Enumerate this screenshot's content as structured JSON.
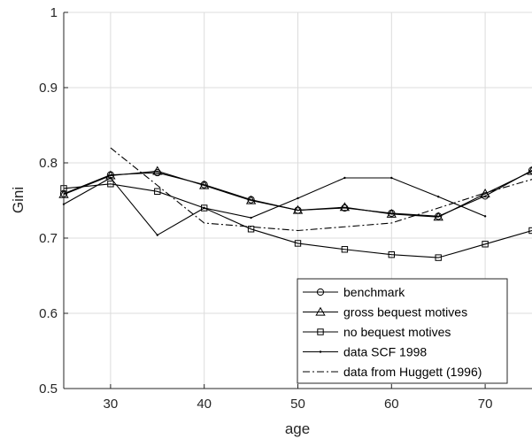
{
  "chart_data": {
    "type": "line",
    "xlabel": "age",
    "ylabel": "Gini",
    "xlim": [
      25,
      75
    ],
    "ylim": [
      0.5,
      1.0
    ],
    "x_ticks": [
      "30",
      "40",
      "50",
      "60",
      "70"
    ],
    "x_tick_values": [
      30,
      40,
      50,
      60,
      70
    ],
    "y_ticks": [
      "0.5",
      "0.6",
      "0.7",
      "0.8",
      "0.9",
      "1"
    ],
    "y_tick_values": [
      0.5,
      0.6,
      0.7,
      0.8,
      0.9,
      1.0
    ],
    "grid": true,
    "legend_position": "bottom-right",
    "series": [
      {
        "name": "benchmark",
        "marker": "circle",
        "line": "solid",
        "x": [
          25,
          30,
          35,
          40,
          45,
          50,
          55,
          60,
          65,
          70,
          75
        ],
        "y": [
          0.759,
          0.784,
          0.787,
          0.771,
          0.751,
          0.737,
          0.74,
          0.733,
          0.729,
          0.756,
          0.79
        ]
      },
      {
        "name": "gross bequest motives",
        "marker": "triangle",
        "line": "solid",
        "x": [
          25,
          30,
          35,
          40,
          45,
          50,
          55,
          60,
          65,
          70,
          75
        ],
        "y": [
          0.758,
          0.783,
          0.789,
          0.77,
          0.75,
          0.737,
          0.741,
          0.732,
          0.728,
          0.759,
          0.789
        ]
      },
      {
        "name": "no bequest motives",
        "marker": "square",
        "line": "solid",
        "x": [
          25,
          30,
          35,
          40,
          45,
          50,
          55,
          60,
          65,
          70,
          75
        ],
        "y": [
          0.766,
          0.772,
          0.762,
          0.74,
          0.712,
          0.693,
          0.685,
          0.678,
          0.674,
          0.692,
          0.71
        ]
      },
      {
        "name": "data SCF 1998",
        "marker": "dot",
        "line": "solid",
        "x": [
          25,
          30,
          35,
          40,
          45,
          50,
          55,
          60,
          65,
          70
        ],
        "y": [
          0.745,
          0.78,
          0.704,
          0.74,
          0.727,
          0.753,
          0.78,
          0.78,
          0.755,
          0.729
        ]
      },
      {
        "name": "data from Huggett (1996)",
        "marker": "none",
        "line": "dashdot",
        "x": [
          30,
          35,
          40,
          45,
          50,
          55,
          60,
          65,
          70,
          75
        ],
        "y": [
          0.82,
          0.77,
          0.72,
          0.715,
          0.71,
          0.715,
          0.72,
          0.74,
          0.76,
          0.778
        ]
      }
    ]
  }
}
